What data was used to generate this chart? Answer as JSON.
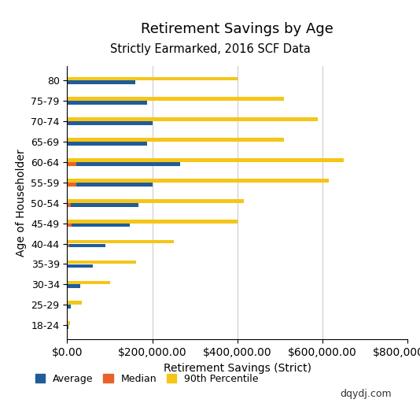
{
  "title": "Retirement Savings by Age",
  "subtitle": "Strictly Earmarked, 2016 SCF Data",
  "xlabel": "Retirement Savings (Strict)",
  "ylabel": "Age of Householder",
  "categories": [
    "18-24",
    "25-29",
    "30-34",
    "35-39",
    "40-44",
    "45-49",
    "50-54",
    "55-59",
    "60-64",
    "65-69",
    "70-74",
    "75-79",
    "80"
  ],
  "average": [
    3000,
    8000,
    31000,
    60000,
    90000,
    148000,
    168000,
    200000,
    265000,
    187000,
    200000,
    187000,
    160000
  ],
  "median": [
    500,
    500,
    500,
    500,
    5000,
    10000,
    8000,
    22000,
    22000,
    500,
    500,
    500,
    500
  ],
  "p90": [
    6000,
    35000,
    100000,
    162000,
    250000,
    400000,
    415000,
    615000,
    650000,
    510000,
    590000,
    510000,
    400000
  ],
  "color_average": "#1F5C99",
  "color_median": "#E8622A",
  "color_p90": "#F5C518",
  "xlim": [
    0,
    800000
  ],
  "watermark": "dqydj.com",
  "legend_labels": [
    "Average",
    "Median",
    "90th Percentile"
  ]
}
